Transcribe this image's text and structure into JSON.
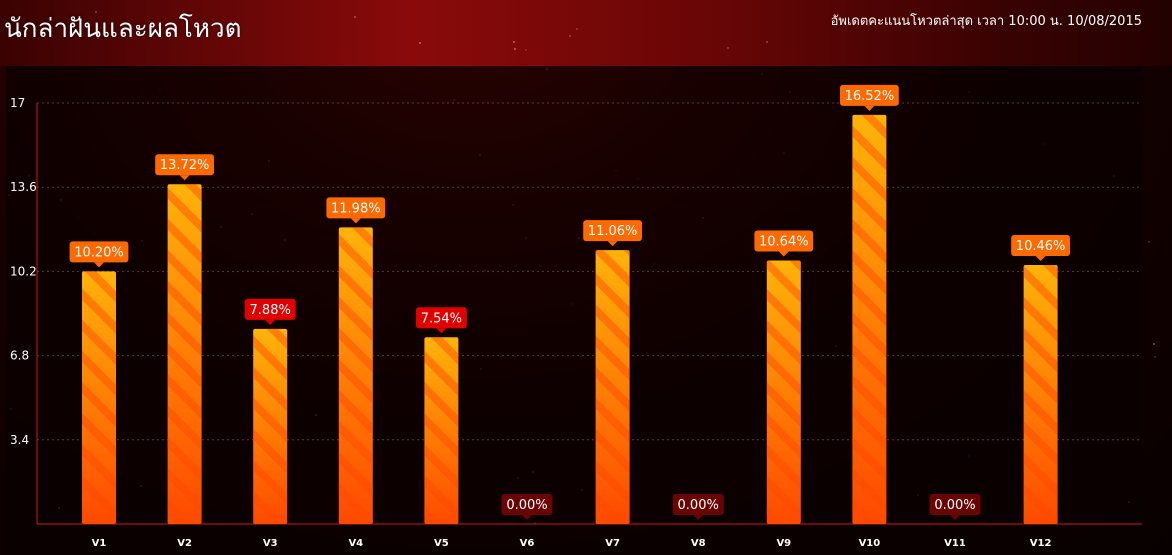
{
  "header": {
    "title": "นักล่าฝันและผลโหวต",
    "update_text": "อัพเดตคะแนนโหวตล่าสุด เวลา 10:00 น. 10/08/2015"
  },
  "colors": {
    "bar_top": "#ffb30a",
    "bar_bottom": "#ff4a00",
    "label_high": "#ff6a00",
    "label_low": "#e00000",
    "label_zero": "#6a0404",
    "axis": "#cc1a1a",
    "grid": "#5a3a3a"
  },
  "chart_data": {
    "type": "bar",
    "title": "",
    "xlabel": "",
    "ylabel": "",
    "ylim": [
      0,
      17
    ],
    "yticks": [
      "3.4",
      "6.8",
      "10.2",
      "13.6",
      "17"
    ],
    "grid": true,
    "categories": [
      "V1",
      "V2",
      "V3",
      "V4",
      "V5",
      "V6",
      "V7",
      "V8",
      "V9",
      "V10",
      "V11",
      "V12"
    ],
    "values": [
      10.2,
      13.72,
      7.88,
      11.98,
      7.54,
      0.0,
      11.06,
      0.0,
      10.64,
      16.52,
      0.0,
      10.46
    ],
    "data_labels": [
      "10.20%",
      "13.72%",
      "7.88%",
      "11.98%",
      "7.54%",
      "0.00%",
      "11.06%",
      "0.00%",
      "10.64%",
      "16.52%",
      "0.00%",
      "10.46%"
    ],
    "label_styles": [
      "high",
      "high",
      "low",
      "high",
      "low",
      "zero",
      "high",
      "zero",
      "high",
      "high",
      "zero",
      "high"
    ]
  }
}
